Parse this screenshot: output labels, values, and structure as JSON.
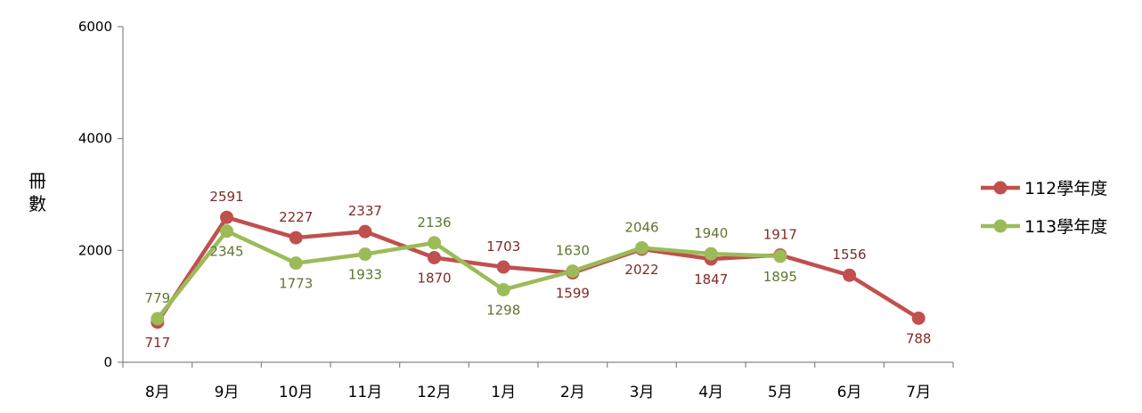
{
  "chart_data": {
    "type": "line",
    "ylabel": "冊數",
    "ylim": [
      0,
      6000
    ],
    "yticks": [
      0,
      2000,
      4000,
      6000
    ],
    "categories": [
      "8月",
      "9月",
      "10月",
      "11月",
      "12月",
      "1月",
      "2月",
      "3月",
      "4月",
      "5月",
      "6月",
      "7月"
    ],
    "legend_position": "right",
    "series": [
      {
        "name": "112學年度",
        "color": "#C0504D",
        "label_color": "#7F2A27",
        "values": [
          717,
          2591,
          2227,
          2337,
          1870,
          1703,
          1599,
          2022,
          1847,
          1917,
          1556,
          788
        ],
        "label_pos": [
          "below",
          "above",
          "above",
          "above",
          "below",
          "above",
          "below",
          "below",
          "below",
          "above",
          "above",
          "below"
        ]
      },
      {
        "name": "113學年度",
        "color": "#9BBB59",
        "label_color": "#5E7530",
        "values": [
          779,
          2345,
          1773,
          1933,
          2136,
          1298,
          1630,
          2046,
          1940,
          1895,
          null,
          null
        ],
        "label_pos": [
          "above",
          "below",
          "below",
          "below",
          "above",
          "below",
          "above",
          "above",
          "above",
          "below",
          null,
          null
        ]
      }
    ]
  }
}
